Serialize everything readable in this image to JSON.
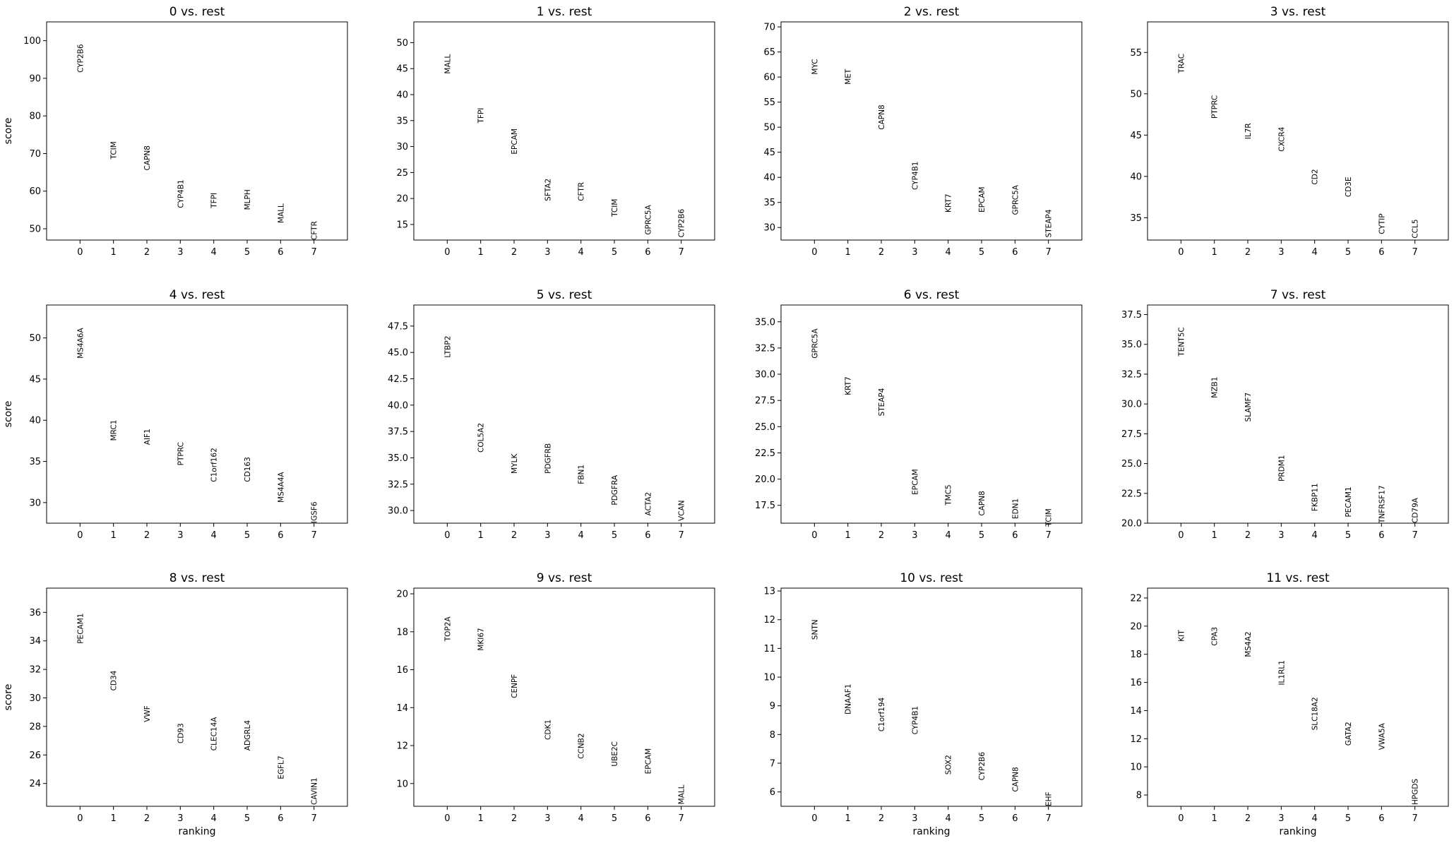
{
  "chart_data": [
    {
      "type": "scatter",
      "title": "0 vs. rest",
      "xlabel": "",
      "ylabel": "score",
      "x": [
        0,
        1,
        2,
        3,
        4,
        5,
        6,
        7
      ],
      "genes": [
        "CYP2B6",
        "TCIM",
        "CAPN8",
        "CYP4B1",
        "TFPI",
        "MLPH",
        "MALL",
        "CFTR"
      ],
      "values": [
        91.5,
        68.5,
        65.5,
        55.5,
        55.5,
        55,
        51.5,
        47
      ],
      "xlim": [
        -1,
        8
      ],
      "ylim": [
        47,
        105
      ],
      "yticks": [
        50,
        60,
        70,
        80,
        90,
        100
      ],
      "yticklabels": [
        "50",
        "60",
        "70",
        "80",
        "90",
        "100"
      ],
      "xticks": [
        0,
        1,
        2,
        3,
        4,
        5,
        6,
        7
      ],
      "xticklabels": [
        "0",
        "1",
        "2",
        "3",
        "4",
        "5",
        "6",
        "7"
      ]
    },
    {
      "type": "scatter",
      "title": "1 vs. rest",
      "xlabel": "",
      "ylabel": "",
      "x": [
        0,
        1,
        2,
        3,
        4,
        5,
        6,
        7
      ],
      "genes": [
        "MALL",
        "TFPI",
        "EPCAM",
        "SFTA2",
        "CFTR",
        "TCIM",
        "GPRC5A",
        "CYP2B6"
      ],
      "values": [
        44,
        34.5,
        28.5,
        19.5,
        19.5,
        16.5,
        13,
        12.5
      ],
      "xlim": [
        -1,
        8
      ],
      "ylim": [
        12,
        54
      ],
      "yticks": [
        15,
        20,
        25,
        30,
        35,
        40,
        45,
        50
      ],
      "yticklabels": [
        "15",
        "20",
        "25",
        "30",
        "35",
        "40",
        "45",
        "50"
      ],
      "xticks": [
        0,
        1,
        2,
        3,
        4,
        5,
        6,
        7
      ],
      "xticklabels": [
        "0",
        "1",
        "2",
        "3",
        "4",
        "5",
        "6",
        "7"
      ]
    },
    {
      "type": "scatter",
      "title": "2 vs. rest",
      "xlabel": "",
      "ylabel": "",
      "x": [
        0,
        1,
        2,
        3,
        4,
        5,
        6,
        7
      ],
      "genes": [
        "MYC",
        "MET",
        "CAPN8",
        "CYP4B1",
        "KRT7",
        "EPCAM",
        "GPRC5A",
        "STEAP4"
      ],
      "values": [
        60.5,
        58.5,
        49.5,
        37.5,
        33,
        33,
        32.5,
        28
      ],
      "xlim": [
        -1,
        8
      ],
      "ylim": [
        27.5,
        71
      ],
      "yticks": [
        30,
        35,
        40,
        45,
        50,
        55,
        60,
        65,
        70
      ],
      "yticklabels": [
        "30",
        "35",
        "40",
        "45",
        "50",
        "55",
        "60",
        "65",
        "70"
      ],
      "xticks": [
        0,
        1,
        2,
        3,
        4,
        5,
        6,
        7
      ],
      "xticklabels": [
        "0",
        "1",
        "2",
        "3",
        "4",
        "5",
        "6",
        "7"
      ]
    },
    {
      "type": "scatter",
      "title": "3 vs. rest",
      "xlabel": "",
      "ylabel": "",
      "x": [
        0,
        1,
        2,
        3,
        4,
        5,
        6,
        7
      ],
      "genes": [
        "TRAC",
        "PTPRC",
        "IL7R",
        "CXCR4",
        "CD2",
        "CD3E",
        "CYTIP",
        "CCL5"
      ],
      "values": [
        52.5,
        47,
        44.5,
        43,
        39,
        37.5,
        33,
        32.5
      ],
      "xlim": [
        -1,
        8
      ],
      "ylim": [
        32.3,
        58.7
      ],
      "yticks": [
        35,
        40,
        45,
        50,
        55
      ],
      "yticklabels": [
        "35",
        "40",
        "45",
        "50",
        "55"
      ],
      "xticks": [
        0,
        1,
        2,
        3,
        4,
        5,
        6,
        7
      ],
      "xticklabels": [
        "0",
        "1",
        "2",
        "3",
        "4",
        "5",
        "6",
        "7"
      ]
    },
    {
      "type": "scatter",
      "title": "4 vs. rest",
      "xlabel": "",
      "ylabel": "score",
      "x": [
        0,
        1,
        2,
        3,
        4,
        5,
        6,
        7
      ],
      "genes": [
        "MS4A6A",
        "MRC1",
        "AIF1",
        "PTPRC",
        "C1orf162",
        "CD163",
        "MS4A4A",
        "IGSF6"
      ],
      "values": [
        47.5,
        37.5,
        37,
        34.5,
        32.5,
        32.5,
        30,
        27.5
      ],
      "xlim": [
        -1,
        8
      ],
      "ylim": [
        27.5,
        54
      ],
      "yticks": [
        30,
        35,
        40,
        45,
        50
      ],
      "yticklabels": [
        "30",
        "35",
        "40",
        "45",
        "50"
      ],
      "xticks": [
        0,
        1,
        2,
        3,
        4,
        5,
        6,
        7
      ],
      "xticklabels": [
        "0",
        "1",
        "2",
        "3",
        "4",
        "5",
        "6",
        "7"
      ]
    },
    {
      "type": "scatter",
      "title": "5 vs. rest",
      "xlabel": "",
      "ylabel": "",
      "x": [
        0,
        1,
        2,
        3,
        4,
        5,
        6,
        7
      ],
      "genes": [
        "LTBP2",
        "COL5A2",
        "MYLK",
        "PDGFRB",
        "FBN1",
        "PDGFRA",
        "ACTA2",
        "VCAN"
      ],
      "values": [
        44.5,
        35.5,
        33.5,
        33.5,
        32.5,
        30.5,
        29.5,
        29
      ],
      "xlim": [
        -1,
        8
      ],
      "ylim": [
        28.8,
        49.5
      ],
      "yticks": [
        30,
        32.5,
        35,
        37.5,
        40,
        42.5,
        45,
        47.5
      ],
      "yticklabels": [
        "30.0",
        "32.5",
        "35.0",
        "37.5",
        "40.0",
        "42.5",
        "45.0",
        "47.5"
      ],
      "xticks": [
        0,
        1,
        2,
        3,
        4,
        5,
        6,
        7
      ],
      "xticklabels": [
        "0",
        "1",
        "2",
        "3",
        "4",
        "5",
        "6",
        "7"
      ]
    },
    {
      "type": "scatter",
      "title": "6 vs. rest",
      "xlabel": "",
      "ylabel": "",
      "x": [
        0,
        1,
        2,
        3,
        4,
        5,
        6,
        7
      ],
      "genes": [
        "GPRC5A",
        "KRT7",
        "STEAP4",
        "EPCAM",
        "TMC5",
        "CAPN8",
        "EDN1",
        "TCIM"
      ],
      "values": [
        31.5,
        28,
        26,
        18.5,
        17.5,
        16.5,
        16.2,
        15.5
      ],
      "xlim": [
        -1,
        8
      ],
      "ylim": [
        15.8,
        36.6
      ],
      "yticks": [
        17.5,
        20,
        22.5,
        25,
        27.5,
        30,
        32.5,
        35
      ],
      "yticklabels": [
        "17.5",
        "20.0",
        "22.5",
        "25.0",
        "27.5",
        "30.0",
        "32.5",
        "35.0"
      ],
      "xticks": [
        0,
        1,
        2,
        3,
        4,
        5,
        6,
        7
      ],
      "xticklabels": [
        "0",
        "1",
        "2",
        "3",
        "4",
        "5",
        "6",
        "7"
      ]
    },
    {
      "type": "scatter",
      "title": "7 vs. rest",
      "xlabel": "",
      "ylabel": "",
      "x": [
        0,
        1,
        2,
        3,
        4,
        5,
        6,
        7
      ],
      "genes": [
        "TENT5C",
        "MZB1",
        "SLAMF7",
        "PRDM1",
        "FKBP11",
        "PECAM1",
        "TNFRSF17",
        "CD79A"
      ],
      "values": [
        34,
        30.5,
        28.5,
        23.5,
        21,
        20.5,
        20,
        20
      ],
      "xlim": [
        -1,
        8
      ],
      "ylim": [
        20,
        38.3
      ],
      "yticks": [
        20,
        22.5,
        25,
        27.5,
        30,
        32.5,
        35,
        37.5
      ],
      "yticklabels": [
        "20.0",
        "22.5",
        "25.0",
        "27.5",
        "30.0",
        "32.5",
        "35.0",
        "37.5"
      ],
      "xticks": [
        0,
        1,
        2,
        3,
        4,
        5,
        6,
        7
      ],
      "xticklabels": [
        "0",
        "1",
        "2",
        "3",
        "4",
        "5",
        "6",
        "7"
      ]
    },
    {
      "type": "scatter",
      "title": "8 vs. rest",
      "xlabel": "ranking",
      "ylabel": "score",
      "x": [
        0,
        1,
        2,
        3,
        4,
        5,
        6,
        7
      ],
      "genes": [
        "PECAM1",
        "CD34",
        "VWF",
        "CD93",
        "CLEC14A",
        "ADGRL4",
        "EGFL7",
        "CAVIN1"
      ],
      "values": [
        33.8,
        30.5,
        28.3,
        26.8,
        26.3,
        26.3,
        24.3,
        22.5
      ],
      "xlim": [
        -1,
        8
      ],
      "ylim": [
        22.4,
        37.7
      ],
      "yticks": [
        24,
        26,
        28,
        30,
        32,
        34,
        36
      ],
      "yticklabels": [
        "24",
        "26",
        "28",
        "30",
        "32",
        "34",
        "36"
      ],
      "xticks": [
        0,
        1,
        2,
        3,
        4,
        5,
        6,
        7
      ],
      "xticklabels": [
        "0",
        "1",
        "2",
        "3",
        "4",
        "5",
        "6",
        "7"
      ]
    },
    {
      "type": "scatter",
      "title": "9 vs. rest",
      "xlabel": "",
      "ylabel": "",
      "x": [
        0,
        1,
        2,
        3,
        4,
        5,
        6,
        7
      ],
      "genes": [
        "TOP2A",
        "MKI67",
        "CENPF",
        "CDK1",
        "CCNB2",
        "UBE2C",
        "EPCAM",
        "MALL"
      ],
      "values": [
        17.5,
        17,
        14.5,
        12.3,
        11.3,
        10.9,
        10.5,
        8.9
      ],
      "xlim": [
        -1,
        8
      ],
      "ylim": [
        8.8,
        20.3
      ],
      "yticks": [
        10,
        12,
        14,
        16,
        18,
        20
      ],
      "yticklabels": [
        "10",
        "12",
        "14",
        "16",
        "18",
        "20"
      ],
      "xticks": [
        0,
        1,
        2,
        3,
        4,
        5,
        6,
        7
      ],
      "xticklabels": [
        "0",
        "1",
        "2",
        "3",
        "4",
        "5",
        "6",
        "7"
      ]
    },
    {
      "type": "scatter",
      "title": "10 vs. rest",
      "xlabel": "ranking",
      "ylabel": "",
      "x": [
        0,
        1,
        2,
        3,
        4,
        5,
        6,
        7
      ],
      "genes": [
        "SNTN",
        "DNAAF1",
        "C1orf194",
        "CYP4B1",
        "SOX2",
        "CYP2B6",
        "CAPN8",
        "EHF"
      ],
      "values": [
        11.3,
        8.7,
        8.1,
        8,
        6.6,
        6.4,
        6,
        5.5
      ],
      "xlim": [
        -1,
        8
      ],
      "ylim": [
        5.5,
        13.1
      ],
      "yticks": [
        6,
        7,
        8,
        9,
        10,
        11,
        12,
        13
      ],
      "yticklabels": [
        "6",
        "7",
        "8",
        "9",
        "10",
        "11",
        "12",
        "13"
      ],
      "xticks": [
        0,
        1,
        2,
        3,
        4,
        5,
        6,
        7
      ],
      "xticklabels": [
        "0",
        "1",
        "2",
        "3",
        "4",
        "5",
        "6",
        "7"
      ]
    },
    {
      "type": "scatter",
      "title": "11 vs. rest",
      "xlabel": "ranking",
      "ylabel": "",
      "x": [
        0,
        1,
        2,
        3,
        4,
        5,
        6,
        7
      ],
      "genes": [
        "KIT",
        "CPA3",
        "MS4A2",
        "IL1RL1",
        "SLC18A2",
        "GATA2",
        "VWA5A",
        "HPGDS"
      ],
      "values": [
        18.9,
        18.6,
        17.8,
        15.8,
        12.6,
        11.5,
        11.2,
        7.3
      ],
      "xlim": [
        -1,
        8
      ],
      "ylim": [
        7.2,
        22.7
      ],
      "yticks": [
        8,
        10,
        12,
        14,
        16,
        18,
        20,
        22
      ],
      "yticklabels": [
        "8",
        "10",
        "12",
        "14",
        "16",
        "18",
        "20",
        "22"
      ],
      "xticks": [
        0,
        1,
        2,
        3,
        4,
        5,
        6,
        7
      ],
      "xticklabels": [
        "0",
        "1",
        "2",
        "3",
        "4",
        "5",
        "6",
        "7"
      ]
    }
  ]
}
